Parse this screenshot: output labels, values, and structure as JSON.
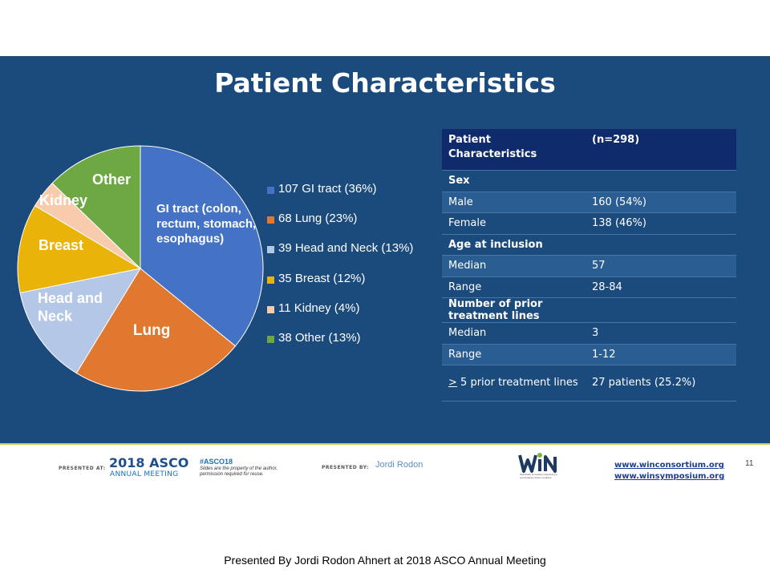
{
  "slide": {
    "title": "Patient Characteristics",
    "page_number": "11"
  },
  "chart_data": {
    "type": "pie",
    "title": "",
    "slices": [
      {
        "label": "GI tract (colon, rectum, stomach, esophagus)",
        "value": 107,
        "percent": 36,
        "legend": "107 GI tract (36%)",
        "color": "#4472c4"
      },
      {
        "label": "Lung",
        "value": 68,
        "percent": 23,
        "legend": "68 Lung (23%)",
        "color": "#e07830"
      },
      {
        "label": "Head and Neck",
        "value": 39,
        "percent": 13,
        "legend": "39 Head and Neck (13%)",
        "color": "#b4c7e7"
      },
      {
        "label": "Breast",
        "value": 35,
        "percent": 12,
        "legend": "35 Breast (12%)",
        "color": "#eab308"
      },
      {
        "label": "Kidney",
        "value": 11,
        "percent": 4,
        "legend": "11 Kidney (4%)",
        "color": "#f8cbad"
      },
      {
        "label": "Other",
        "value": 38,
        "percent": 13,
        "legend": "38 Other (13%)",
        "color": "#6ea842"
      }
    ],
    "legend_position": "right"
  },
  "table": {
    "header": {
      "col1": "Patient Characteristics",
      "col2": "(n=298)"
    },
    "rows": [
      {
        "kind": "section",
        "label": "Sex"
      },
      {
        "kind": "odd",
        "label": "Male",
        "value": "160 (54%)"
      },
      {
        "kind": "even",
        "label": "Female",
        "value": "138 (46%)"
      },
      {
        "kind": "section",
        "label": "Age at inclusion"
      },
      {
        "kind": "odd",
        "label": "Median",
        "value": "57"
      },
      {
        "kind": "even",
        "label": "Range",
        "value": "28-84"
      },
      {
        "kind": "section",
        "label": "Number of prior treatment lines"
      },
      {
        "kind": "even",
        "label": "Median",
        "value": "3"
      },
      {
        "kind": "odd",
        "label": "Range",
        "value": "1-12"
      },
      {
        "kind": "last",
        "label_prefix": ">",
        "label": " 5 prior treatment lines",
        "value": "27  patients (25.2%)"
      }
    ]
  },
  "footer": {
    "presented_at": "PRESENTED AT:",
    "asco_year": "2018 ASCO",
    "asco_sub": "ANNUAL MEETING",
    "hashtag": "#ASCO18",
    "hashtag_note": "Slides are the property of the author, permission required for reuse.",
    "presented_by": "PRESENTED BY:",
    "presenter": "Jordi Rodon",
    "logo_text": "WIN",
    "logo_tagline": "Worldwide Innovative networking in personalized cancer medicine",
    "url1": "www.winconsortium.org",
    "url2": "www.winsymposium.org",
    "logo_colors": {
      "dark": "#1f3a5f",
      "accent": "#7ab342"
    }
  },
  "caption": "Presented By Jordi Rodon Ahnert at 2018 ASCO Annual Meeting"
}
